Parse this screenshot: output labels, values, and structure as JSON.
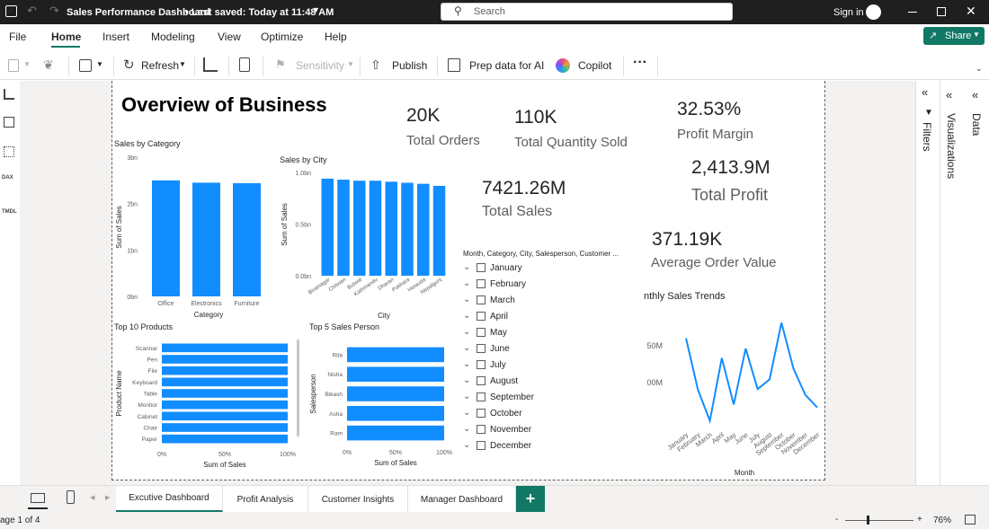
{
  "titlebar": {
    "title": "Sales Performance Dashboard",
    "saved": "• Last saved: Today at 11:48 AM",
    "search_placeholder": "Search",
    "sign_in": "Sign in"
  },
  "menu": [
    "File",
    "Home",
    "Insert",
    "Modeling",
    "View",
    "Optimize",
    "Help"
  ],
  "share": "Share",
  "toolbar": {
    "refresh": "Refresh",
    "sensitivity": "Sensitivity",
    "publish": "Publish",
    "prep": "Prep data for AI",
    "copilot": "Copilot",
    "more": "···"
  },
  "report": {
    "title": "Overview of Business",
    "kpis": [
      {
        "value": "20K",
        "label": "Total Orders"
      },
      {
        "value": "110K",
        "label": "Total Quantity Sold"
      },
      {
        "value": "32.53%",
        "label": "Profit Margin"
      },
      {
        "value": "2,413.9M",
        "label": "Total Profit"
      },
      {
        "value": "7421.26M",
        "label": "Total Sales"
      },
      {
        "value": "371.19K",
        "label": "Average Order Value"
      }
    ],
    "slicer": {
      "header": "Month, Category, City, Salesperson, Customer ...",
      "items": [
        "January",
        "February",
        "March",
        "April",
        "May",
        "June",
        "July",
        "August",
        "September",
        "October",
        "November",
        "December"
      ]
    }
  },
  "chart_data": [
    {
      "type": "bar",
      "title": "Sales by Category",
      "categories": [
        "Office",
        "Electronics",
        "Furniture"
      ],
      "values": [
        2.5,
        2.45,
        2.44
      ],
      "xlabel": "Category",
      "ylabel": "Sum of Sales",
      "ylim": [
        0,
        3
      ],
      "yticks": [
        "0bn",
        "1bn",
        "2bn",
        "3bn"
      ],
      "color": "#118DFF"
    },
    {
      "type": "bar",
      "title": "Sales by City",
      "categories": [
        "Biratnagar",
        "Chitwan",
        "Butwal",
        "Kathmandu",
        "Dharan",
        "Pokhara",
        "Hetauda",
        "Nepalgunj"
      ],
      "values": [
        0.94,
        0.93,
        0.92,
        0.92,
        0.91,
        0.9,
        0.89,
        0.87
      ],
      "xlabel": "City",
      "ylabel": "Sum of Sales",
      "ylim": [
        0,
        1
      ],
      "yticks": [
        "0.0bn",
        "0.5bn",
        "1.0bn"
      ],
      "color": "#118DFF"
    },
    {
      "type": "bar",
      "orientation": "horizontal",
      "title": "Top 10 Products",
      "categories": [
        "Scannar",
        "Pen",
        "File",
        "Keyboard",
        "Table",
        "Monitor",
        "Cabinet",
        "Chair",
        "Paper"
      ],
      "values": [
        100,
        100,
        100,
        100,
        100,
        100,
        100,
        100,
        100
      ],
      "xlabel": "Sum of Sales",
      "ylabel": "Product Name",
      "xticks": [
        "0%",
        "50%",
        "100%"
      ],
      "color": "#118DFF"
    },
    {
      "type": "bar",
      "orientation": "horizontal",
      "title": "Top 5 Sales Person",
      "categories": [
        "Rita",
        "Nisha",
        "Bikash",
        "Asha",
        "Ram"
      ],
      "values": [
        100,
        100,
        100,
        100,
        100
      ],
      "xlabel": "Sum of Sales",
      "ylabel": "Salesperson",
      "xticks": [
        "0%",
        "50%",
        "100%"
      ],
      "color": "#118DFF"
    },
    {
      "type": "line",
      "title": "nthly Sales Trends",
      "categories": [
        "January",
        "February",
        "March",
        "April",
        "May",
        "June",
        "July",
        "August",
        "September",
        "October",
        "November",
        "December"
      ],
      "values": [
        660,
        590,
        548,
        633,
        570,
        646,
        591,
        604,
        681,
        619,
        583,
        566
      ],
      "ylim": [
        540,
        690
      ],
      "yticks": [
        "50M",
        "00M"
      ],
      "ytick_values": [
        650,
        600
      ],
      "xlabel": "Month",
      "color": "#118DFF"
    }
  ],
  "tabs": [
    {
      "label": "Excutive Dashboard",
      "active": true
    },
    {
      "label": "Profit Analysis"
    },
    {
      "label": "Customer Insights"
    },
    {
      "label": "Manager Dashboard"
    }
  ],
  "add_tab": "+",
  "panes": {
    "filters": "Filters",
    "visualizations": "Visualizations",
    "data": "Data"
  },
  "status": {
    "page": "age 1 of 4",
    "zoom": "76%",
    "minus": "-",
    "plus": "+"
  }
}
